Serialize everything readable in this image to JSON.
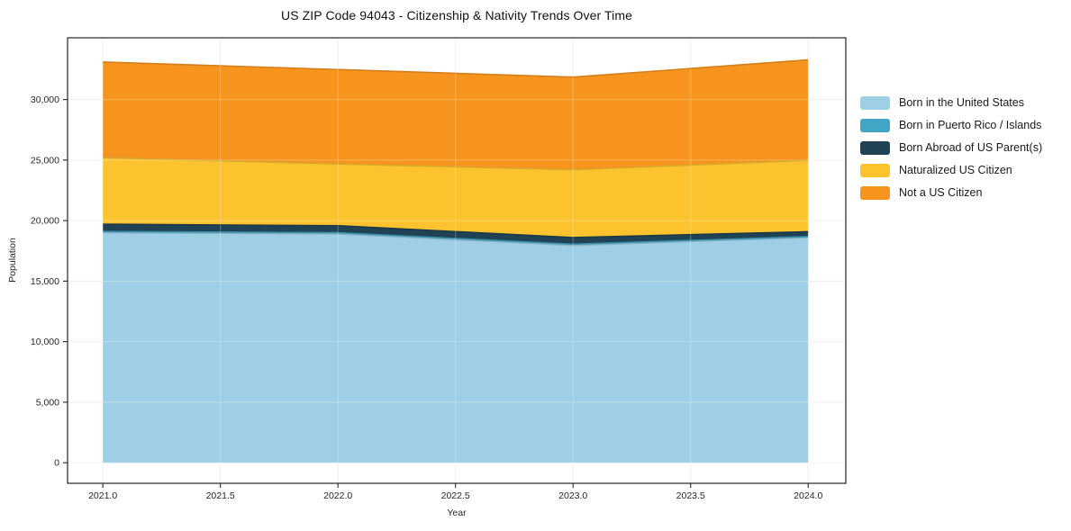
{
  "chart_data": {
    "type": "area",
    "stacked": true,
    "title": "US ZIP Code 94043 - Citizenship & Nativity Trends Over Time",
    "xlabel": "Year",
    "ylabel": "Population",
    "x": [
      2021,
      2022,
      2023,
      2024
    ],
    "series": [
      {
        "name": "Born in the United States",
        "color": "#9fcfe6",
        "values": [
          19000,
          18900,
          17950,
          18600
        ]
      },
      {
        "name": "Born in Puerto Rico / Islands",
        "color": "#41a6c6",
        "values": [
          100,
          100,
          100,
          80
        ]
      },
      {
        "name": "Born Abroad of US Parent(s)",
        "color": "#1f4254",
        "values": [
          600,
          580,
          550,
          400
        ]
      },
      {
        "name": "Naturalized US Citizen",
        "color": "#fcc32e",
        "values": [
          5500,
          5100,
          5600,
          5900
        ]
      },
      {
        "name": "Not a US Citizen",
        "color": "#f6941e",
        "values": [
          7900,
          7800,
          7650,
          8300
        ]
      }
    ],
    "x_tick_values": [
      2021.0,
      2021.5,
      2022.0,
      2022.5,
      2023.0,
      2023.5,
      2024.0
    ],
    "x_tick_labels": [
      "2021.0",
      "2021.5",
      "2022.0",
      "2022.5",
      "2023.0",
      "2023.5",
      "2024.0"
    ],
    "y_tick_values": [
      0,
      5000,
      10000,
      15000,
      20000,
      25000,
      30000
    ],
    "y_tick_labels": [
      "0",
      "5,000",
      "10,000",
      "15,000",
      "20,000",
      "25,000",
      "30,000"
    ],
    "xlim": [
      2020.85,
      2024.16
    ],
    "ylim": [
      -1700,
      35100
    ],
    "grid": true,
    "legend_position": "right-outside",
    "colors": {
      "grid": "#ececec",
      "spine": "#262626",
      "tick_text": "#262626"
    }
  }
}
